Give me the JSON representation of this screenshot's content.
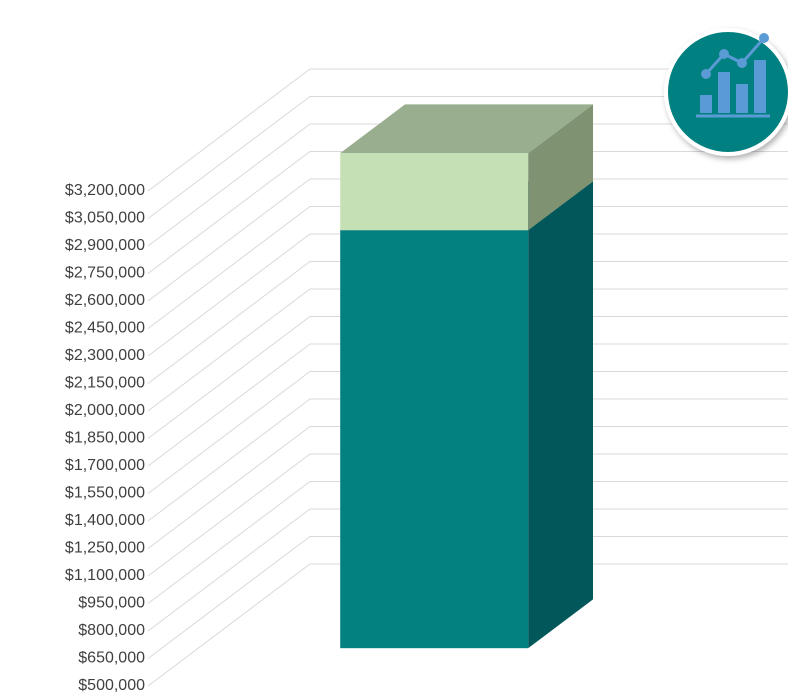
{
  "chart_data": {
    "type": "bar3d_stacked",
    "categories": [
      null
    ],
    "series": [
      {
        "name": null,
        "color": "#038080",
        "side_color": "#02575a",
        "top_color": "#037070",
        "values": [
          2780000
        ]
      },
      {
        "name": null,
        "color": "#c5e0b4",
        "side_color": "#7f9272",
        "top_color": "#98ae8e",
        "values": [
          460000
        ]
      }
    ],
    "ylim": [
      500000,
      3200000
    ],
    "yticks": [
      {
        "value": 500000,
        "label": "$500,000"
      },
      {
        "value": 650000,
        "label": "$650,000"
      },
      {
        "value": 800000,
        "label": "$800,000"
      },
      {
        "value": 950000,
        "label": "$950,000"
      },
      {
        "value": 1100000,
        "label": "$1,100,000"
      },
      {
        "value": 1250000,
        "label": "$1,250,000"
      },
      {
        "value": 1400000,
        "label": "$1,400,000"
      },
      {
        "value": 1550000,
        "label": "$1,550,000"
      },
      {
        "value": 1700000,
        "label": "$1,700,000"
      },
      {
        "value": 1850000,
        "label": "$1,850,000"
      },
      {
        "value": 2000000,
        "label": "$2,000,000"
      },
      {
        "value": 2150000,
        "label": "$2,150,000"
      },
      {
        "value": 2300000,
        "label": "$2,300,000"
      },
      {
        "value": 2450000,
        "label": "$2,450,000"
      },
      {
        "value": 2600000,
        "label": "$2,600,000"
      },
      {
        "value": 2750000,
        "label": "$2,750,000"
      },
      {
        "value": 2900000,
        "label": "$2,900,000"
      },
      {
        "value": 3050000,
        "label": "$3,050,000"
      },
      {
        "value": 3200000,
        "label": "$3,200,000"
      }
    ],
    "grid": true
  }
}
